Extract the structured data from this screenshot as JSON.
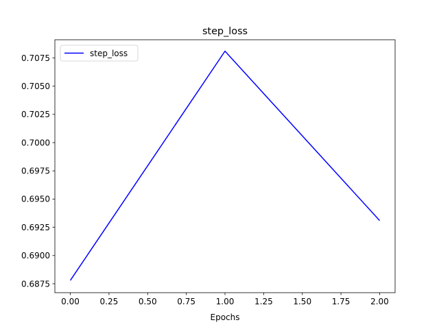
{
  "chart_data": {
    "type": "line",
    "title": "step_loss",
    "xlabel": "Epochs",
    "ylabel": "",
    "x": [
      0,
      1,
      2
    ],
    "series": [
      {
        "name": "step_loss",
        "color": "#0000ff",
        "values": [
          0.6878,
          0.7081,
          0.6931
        ]
      }
    ],
    "xlim": [
      -0.1,
      2.1
    ],
    "ylim": [
      0.68671,
      0.70911
    ],
    "x_ticks": [
      "0.00",
      "0.25",
      "0.50",
      "0.75",
      "1.00",
      "1.25",
      "1.50",
      "1.75",
      "2.00"
    ],
    "x_tick_values": [
      0,
      0.25,
      0.5,
      0.75,
      1.0,
      1.25,
      1.5,
      1.75,
      2.0
    ],
    "y_ticks": [
      "0.6875",
      "0.6900",
      "0.6925",
      "0.6950",
      "0.6975",
      "0.7000",
      "0.7025",
      "0.7050",
      "0.7075"
    ],
    "y_tick_values": [
      0.6875,
      0.69,
      0.6925,
      0.695,
      0.6975,
      0.7,
      0.7025,
      0.705,
      0.7075
    ],
    "grid": false,
    "legend_position": "top-left"
  }
}
